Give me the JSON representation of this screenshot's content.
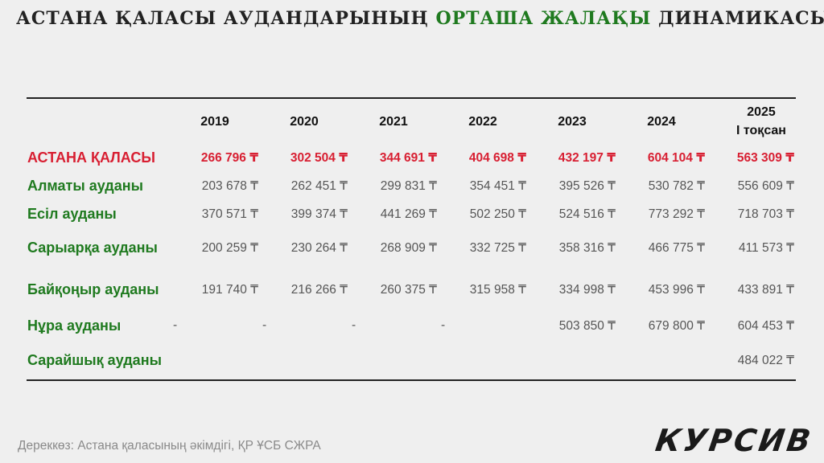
{
  "title": {
    "part1": "АСТАНА ҚАЛАСЫ АУДАНДАРЫНЫҢ",
    "accent": "ОРТАША ЖАЛАҚЫ",
    "part2": "ДИНАМИКАСЫ"
  },
  "colors": {
    "city": "#d81f32",
    "district": "#1f7a1f",
    "value": "#555555",
    "background": "#efefef"
  },
  "chart_data": {
    "type": "table",
    "columns": [
      "2019",
      "2020",
      "2021",
      "2022",
      "2023",
      "2024",
      "2025"
    ],
    "column_sublabels": [
      "",
      "",
      "",
      "",
      "",
      "",
      "І тоқсан"
    ],
    "rows": [
      {
        "name": "АСТАНА ҚАЛАСЫ",
        "highlight": true,
        "values": [
          "266 796 ₸",
          "302 504 ₸",
          "344 691 ₸",
          "404 698 ₸",
          "432 197 ₸",
          "604 104 ₸",
          "563 309 ₸"
        ]
      },
      {
        "name": "Алматы ауданы",
        "values": [
          "203 678 ₸",
          "262 451 ₸",
          "299 831 ₸",
          "354 451 ₸",
          "395 526 ₸",
          "530 782 ₸",
          "556 609 ₸"
        ]
      },
      {
        "name": "Есіл ауданы",
        "values": [
          "370 571 ₸",
          "399 374 ₸",
          "441 269 ₸",
          "502 250 ₸",
          "524 516 ₸",
          "773 292 ₸",
          "718 703 ₸"
        ]
      },
      {
        "name": "Сарыарқа ауданы",
        "values": [
          "200 259 ₸",
          "230 264 ₸",
          "268 909 ₸",
          "332 725 ₸",
          "358 316 ₸",
          "466 775 ₸",
          "411 573 ₸"
        ]
      },
      {
        "name": "Байқоңыр ауданы",
        "values": [
          "191 740 ₸",
          "216 266 ₸",
          "260 375 ₸",
          "315 958 ₸",
          "334 998 ₸",
          "453 996 ₸",
          "433 891 ₸"
        ]
      },
      {
        "name": "Нұра ауданы",
        "values": [
          "-",
          "-",
          "-",
          "-",
          "503 850 ₸",
          "679 800 ₸",
          "604 453 ₸"
        ]
      },
      {
        "name": "Сарайшық ауданы",
        "values": [
          "",
          "",
          "",
          "",
          "",
          "",
          "484 022 ₸"
        ]
      }
    ]
  },
  "source": "Дереккөз: Астана қаласының әкімдігі, ҚР ҰСБ СЖРА",
  "logo": "КУРСИВ"
}
